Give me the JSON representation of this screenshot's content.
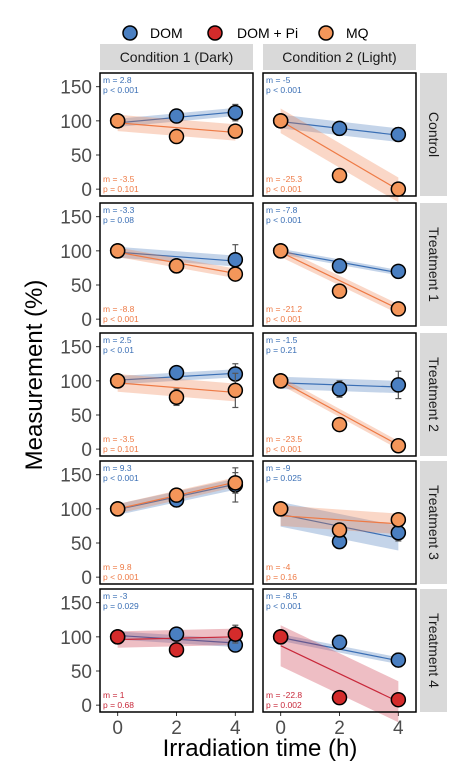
{
  "chart_data": {
    "type": "scatter",
    "xlabel": "Irradiation time (h)",
    "ylabel": "Measurement (%)",
    "x_ticks": [
      0,
      2,
      4
    ],
    "y_ticks": [
      0,
      50,
      100,
      150
    ],
    "ylim": [
      -10,
      170
    ],
    "xlim": [
      -0.6,
      4.6
    ],
    "columns": [
      "Condition 1 (Dark)",
      "Condition 2 (Light)"
    ],
    "rows": [
      "Control",
      "Treatment 1",
      "Treatment 2",
      "Treatment 3",
      "Treatment 4"
    ],
    "legend": [
      {
        "key": "DOM",
        "label": "DOM",
        "color": "#4a7fc1"
      },
      {
        "key": "DOMPi",
        "label": "DOM + Pi",
        "color": "#d42b2b"
      },
      {
        "key": "MQ",
        "label": "MQ",
        "color": "#f4965a"
      }
    ],
    "line_colors": {
      "DOM": "#3a6fb5",
      "DOMPi": "#c8283a",
      "MQ": "#ee7a45"
    },
    "panels": [
      {
        "row": 0,
        "col": 0,
        "series": [
          {
            "key": "DOM",
            "points": [
              [
                0,
                100,
                0
              ],
              [
                2,
                107,
                5
              ],
              [
                4,
                112,
                12
              ]
            ],
            "fit": [
              97,
              113
            ],
            "band": 6
          },
          {
            "key": "MQ",
            "points": [
              [
                0,
                100,
                0
              ],
              [
                2,
                77,
                0
              ],
              [
                4,
                85,
                0
              ]
            ],
            "fit": [
              97,
              83
            ],
            "band": 12
          }
        ],
        "stats": [
          {
            "key": "DOM",
            "pos": "top",
            "m": "m = 2.8",
            "p": "p  < 0.001"
          },
          {
            "key": "MQ",
            "pos": "bottom",
            "m": "m = -3.5",
            "p": "p = 0.101"
          }
        ]
      },
      {
        "row": 0,
        "col": 1,
        "series": [
          {
            "key": "DOM",
            "points": [
              [
                0,
                100,
                0
              ],
              [
                2,
                89,
                10
              ],
              [
                4,
                80,
                10
              ]
            ],
            "fit": [
              99,
              79
            ],
            "band": 10
          },
          {
            "key": "MQ",
            "points": [
              [
                0,
                100,
                0
              ],
              [
                2,
                20,
                0
              ],
              [
                4,
                0,
                0
              ]
            ],
            "fit": [
              100,
              -1
            ],
            "band": 18
          }
        ],
        "stats": [
          {
            "key": "DOM",
            "pos": "top",
            "m": "m = -5",
            "p": "p  < 0.001"
          },
          {
            "key": "MQ",
            "pos": "bottom",
            "m": "m = -25.3",
            "p": "p  < 0.001"
          }
        ]
      },
      {
        "row": 1,
        "col": 0,
        "series": [
          {
            "key": "DOM",
            "points": [
              [
                0,
                100,
                0
              ],
              [
                2,
                78,
                5
              ],
              [
                4,
                87,
                22
              ]
            ],
            "fit": [
              98,
              85
            ],
            "band": 8
          },
          {
            "key": "MQ",
            "points": [
              [
                0,
                100,
                0
              ],
              [
                2,
                78,
                0
              ],
              [
                4,
                66,
                0
              ]
            ],
            "fit": [
              98,
              67
            ],
            "band": 7
          }
        ],
        "stats": [
          {
            "key": "DOM",
            "pos": "top",
            "m": "m = -3.3",
            "p": "p = 0.08"
          },
          {
            "key": "MQ",
            "pos": "bottom",
            "m": "m = -8.8",
            "p": "p  < 0.001"
          }
        ]
      },
      {
        "row": 1,
        "col": 1,
        "series": [
          {
            "key": "DOM",
            "points": [
              [
                0,
                100,
                0
              ],
              [
                2,
                78,
                5
              ],
              [
                4,
                70,
                5
              ]
            ],
            "fit": [
              99,
              68
            ],
            "band": 4
          },
          {
            "key": "MQ",
            "points": [
              [
                0,
                100,
                0
              ],
              [
                2,
                41,
                0
              ],
              [
                4,
                15,
                0
              ]
            ],
            "fit": [
              98,
              15
            ],
            "band": 7
          }
        ],
        "stats": [
          {
            "key": "DOM",
            "pos": "top",
            "m": "m = -7.8",
            "p": "p  < 0.001"
          },
          {
            "key": "MQ",
            "pos": "bottom",
            "m": "m = -21.2",
            "p": "p  < 0.001"
          }
        ]
      },
      {
        "row": 2,
        "col": 0,
        "series": [
          {
            "key": "DOM",
            "points": [
              [
                0,
                100,
                0
              ],
              [
                2,
                112,
                5
              ],
              [
                4,
                110,
                15
              ]
            ],
            "fit": [
              101,
              111
            ],
            "band": 6
          },
          {
            "key": "MQ",
            "points": [
              [
                0,
                100,
                0
              ],
              [
                2,
                76,
                12
              ],
              [
                4,
                86,
                25
              ]
            ],
            "fit": [
              97,
              83
            ],
            "band": 13
          }
        ],
        "stats": [
          {
            "key": "DOM",
            "pos": "top",
            "m": "m = 2.5",
            "p": "p  < 0.01"
          },
          {
            "key": "MQ",
            "pos": "bottom",
            "m": "m = -3.5",
            "p": "p = 0.101"
          }
        ]
      },
      {
        "row": 2,
        "col": 1,
        "series": [
          {
            "key": "DOM",
            "points": [
              [
                0,
                100,
                0
              ],
              [
                2,
                88,
                12
              ],
              [
                4,
                94,
                20
              ]
            ],
            "fit": [
              97,
              91
            ],
            "band": 9
          },
          {
            "key": "MQ",
            "points": [
              [
                0,
                100,
                0
              ],
              [
                2,
                36,
                0
              ],
              [
                4,
                5,
                0
              ]
            ],
            "fit": [
              100,
              6
            ],
            "band": 6
          }
        ],
        "stats": [
          {
            "key": "DOM",
            "pos": "top",
            "m": "m = -1.5",
            "p": "p = 0.21"
          },
          {
            "key": "MQ",
            "pos": "bottom",
            "m": "m = -23.5",
            "p": "p  < 0.001"
          }
        ]
      },
      {
        "row": 3,
        "col": 0,
        "series": [
          {
            "key": "DOM",
            "points": [
              [
                0,
                100,
                0
              ],
              [
                2,
                113,
                10
              ],
              [
                4,
                135,
                25
              ]
            ],
            "fit": [
              99,
              136
            ],
            "band": 8
          },
          {
            "key": "MQ",
            "points": [
              [
                0,
                100,
                0
              ],
              [
                2,
                120,
                0
              ],
              [
                4,
                138,
                15
              ]
            ],
            "fit": [
              100,
              139
            ],
            "band": 7
          }
        ],
        "stats": [
          {
            "key": "DOM",
            "pos": "top",
            "m": "m = 9.3",
            "p": "p  < 0.001"
          },
          {
            "key": "MQ",
            "pos": "bottom",
            "m": "m = 9.8",
            "p": "p  < 0.001"
          }
        ]
      },
      {
        "row": 3,
        "col": 1,
        "series": [
          {
            "key": "DOM",
            "points": [
              [
                0,
                100,
                0
              ],
              [
                2,
                52,
                0
              ],
              [
                4,
                65,
                12
              ]
            ],
            "fit": [
              92,
              57
            ],
            "band": 18
          },
          {
            "key": "MQ",
            "points": [
              [
                0,
                100,
                0
              ],
              [
                2,
                69,
                0
              ],
              [
                4,
                84,
                0
              ]
            ],
            "fit": [
              90,
              78
            ],
            "band": 15
          }
        ],
        "stats": [
          {
            "key": "DOM",
            "pos": "top",
            "m": "m = -9",
            "p": "p = 0.025"
          },
          {
            "key": "MQ",
            "pos": "bottom",
            "m": "m = -4",
            "p": "p = 0.16"
          }
        ]
      },
      {
        "row": 4,
        "col": 0,
        "series": [
          {
            "key": "DOM",
            "points": [
              [
                0,
                100,
                0
              ],
              [
                2,
                104,
                0
              ],
              [
                4,
                88,
                5
              ]
            ],
            "fit": [
              102,
              91
            ],
            "band": 6
          },
          {
            "key": "DOMPi",
            "points": [
              [
                0,
                100,
                0
              ],
              [
                2,
                81,
                0
              ],
              [
                4,
                104,
                13
              ]
            ],
            "fit": [
              96,
              100
            ],
            "band": 12
          }
        ],
        "stats": [
          {
            "key": "DOM",
            "pos": "top",
            "m": "m = -3",
            "p": "p = 0.029"
          },
          {
            "key": "DOMPi",
            "pos": "bottom",
            "m": "m = 1",
            "p": "p = 0.68"
          }
        ]
      },
      {
        "row": 4,
        "col": 1,
        "series": [
          {
            "key": "DOM",
            "points": [
              [
                0,
                100,
                0
              ],
              [
                2,
                92,
                10
              ],
              [
                4,
                66,
                10
              ]
            ],
            "fit": [
              99,
              65
            ],
            "band": 5
          },
          {
            "key": "DOMPi",
            "points": [
              [
                0,
                100,
                0
              ],
              [
                2,
                11,
                0
              ],
              [
                4,
                8,
                0
              ]
            ],
            "fit": [
              87,
              5
            ],
            "band": 30
          }
        ],
        "stats": [
          {
            "key": "DOM",
            "pos": "top",
            "m": "m = -8.5",
            "p": "p  < 0.001"
          },
          {
            "key": "DOMPi",
            "pos": "bottom",
            "m": "m = -22.8",
            "p": "p = 0.002"
          }
        ]
      }
    ]
  }
}
